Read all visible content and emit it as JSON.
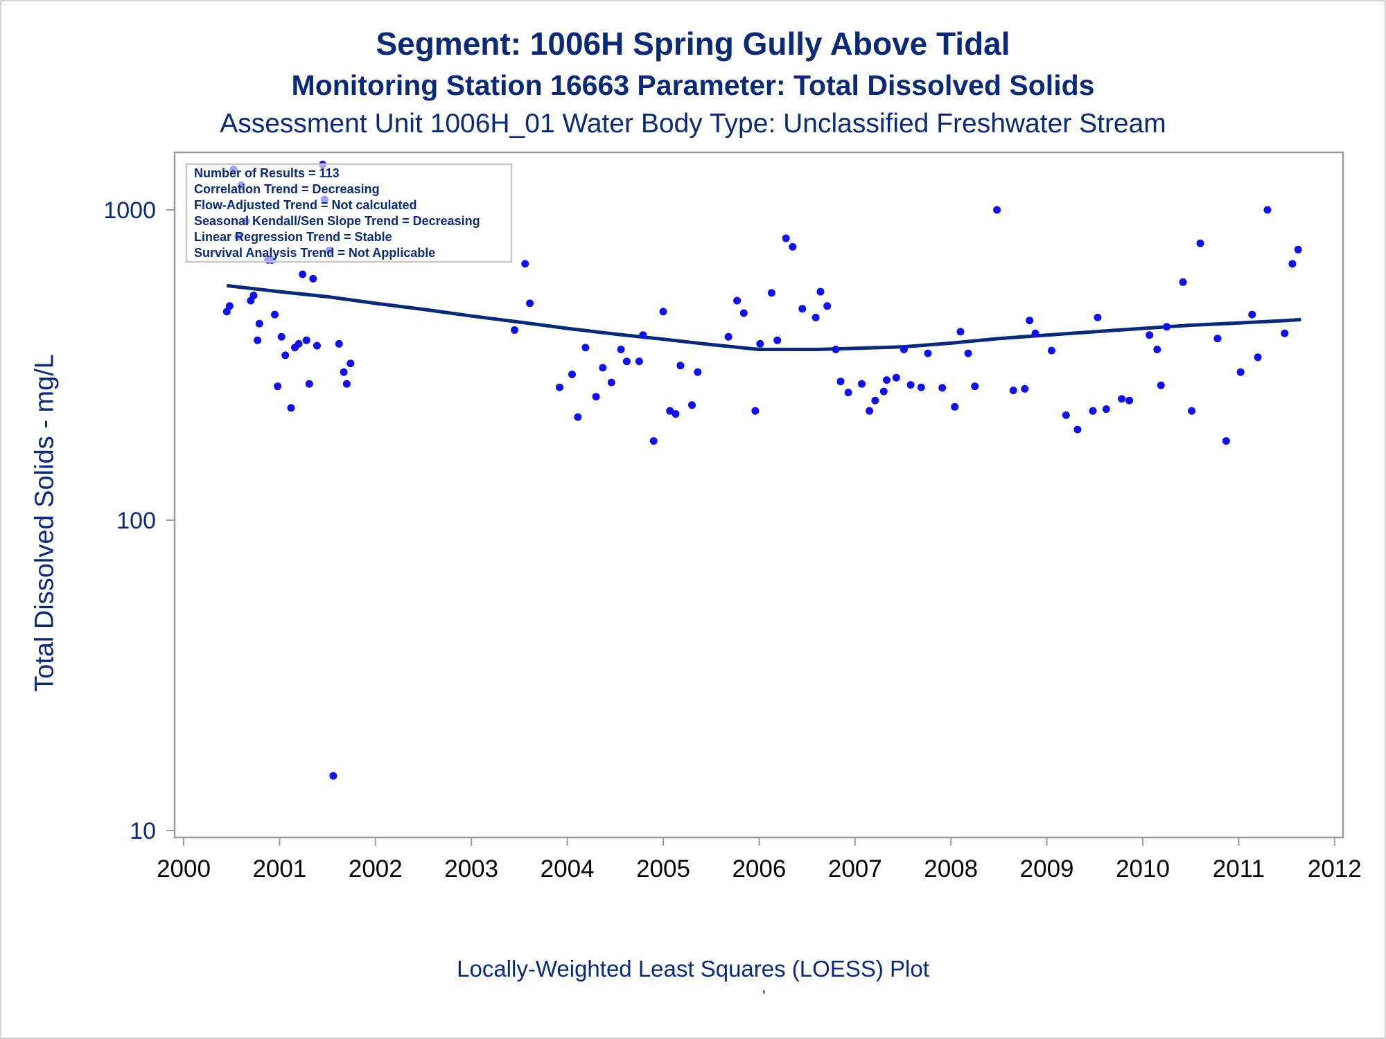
{
  "chart_data": {
    "type": "scatter",
    "title": "Segment: 1006H  Spring Gully Above Tidal",
    "subtitle": "Monitoring Station 16663 Parameter: Total Dissolved Solids",
    "subtitle2": "Assessment Unit 1006H_01   Water Body Type: Unclassified Freshwater Stream",
    "xlabel": "Locally-Weighted Least Squares (LOESS) Plot",
    "ylabel": "Total Dissolved Solids - mg/L",
    "footnote": "'",
    "xlim": [
      2000,
      2012
    ],
    "ylim": [
      10,
      1500
    ],
    "y_scale": "log",
    "x_ticks": [
      "2000",
      "2001",
      "2002",
      "2003",
      "2004",
      "2005",
      "2006",
      "2007",
      "2008",
      "2009",
      "2010",
      "2011",
      "2012"
    ],
    "y_ticks": [
      "10",
      "100",
      "1000"
    ],
    "grid": false,
    "stats_box": {
      "placement": "top-left",
      "lines": [
        "Number of Results = 113",
        "Correlation Trend = Decreasing",
        "Flow-Adjusted Trend = Not calculated",
        "Seasonal Kendall/Sen Slope Trend = Decreasing",
        "Linear Regression Trend = Stable",
        "Survival Analysis Trend = Not Applicable"
      ]
    },
    "series": [
      {
        "type": "scatter",
        "color": "#1010ee",
        "points": [
          [
            2000.45,
            470
          ],
          [
            2000.48,
            490
          ],
          [
            2000.52,
            1350
          ],
          [
            2000.57,
            820
          ],
          [
            2000.6,
            1200
          ],
          [
            2000.65,
            920
          ],
          [
            2000.7,
            510
          ],
          [
            2000.73,
            530
          ],
          [
            2000.77,
            380
          ],
          [
            2000.79,
            430
          ],
          [
            2000.88,
            690
          ],
          [
            2000.92,
            690
          ],
          [
            2000.95,
            460
          ],
          [
            2000.98,
            270
          ],
          [
            2001.02,
            390
          ],
          [
            2001.06,
            340
          ],
          [
            2001.12,
            230
          ],
          [
            2001.16,
            360
          ],
          [
            2001.2,
            370
          ],
          [
            2001.24,
            620
          ],
          [
            2001.28,
            380
          ],
          [
            2001.31,
            275
          ],
          [
            2001.35,
            600
          ],
          [
            2001.39,
            365
          ],
          [
            2001.45,
            1400
          ],
          [
            2001.47,
            1080
          ],
          [
            2001.52,
            740
          ],
          [
            2001.56,
            15
          ],
          [
            2001.62,
            370
          ],
          [
            2001.67,
            300
          ],
          [
            2001.7,
            275
          ],
          [
            2001.74,
            320
          ],
          [
            2003.45,
            410
          ],
          [
            2003.56,
            670
          ],
          [
            2003.61,
            500
          ],
          [
            2003.92,
            268
          ],
          [
            2004.05,
            295
          ],
          [
            2004.11,
            215
          ],
          [
            2004.19,
            360
          ],
          [
            2004.3,
            250
          ],
          [
            2004.37,
            310
          ],
          [
            2004.46,
            278
          ],
          [
            2004.56,
            355
          ],
          [
            2004.62,
            325
          ],
          [
            2004.75,
            325
          ],
          [
            2004.79,
            395
          ],
          [
            2004.9,
            180
          ],
          [
            2005.0,
            470
          ],
          [
            2005.07,
            225
          ],
          [
            2005.13,
            220
          ],
          [
            2005.18,
            315
          ],
          [
            2005.3,
            235
          ],
          [
            2005.36,
            300
          ],
          [
            2005.68,
            390
          ],
          [
            2005.77,
            510
          ],
          [
            2005.84,
            465
          ],
          [
            2005.96,
            225
          ],
          [
            2006.01,
            370
          ],
          [
            2006.13,
            540
          ],
          [
            2006.19,
            380
          ],
          [
            2006.28,
            810
          ],
          [
            2006.35,
            760
          ],
          [
            2006.45,
            480
          ],
          [
            2006.59,
            450
          ],
          [
            2006.64,
            545
          ],
          [
            2006.71,
            490
          ],
          [
            2006.8,
            355
          ],
          [
            2006.85,
            280
          ],
          [
            2006.93,
            258
          ],
          [
            2007.07,
            275
          ],
          [
            2007.15,
            225
          ],
          [
            2007.21,
            243
          ],
          [
            2007.3,
            260
          ],
          [
            2007.33,
            283
          ],
          [
            2007.43,
            288
          ],
          [
            2007.51,
            355
          ],
          [
            2007.58,
            273
          ],
          [
            2007.69,
            268
          ],
          [
            2007.76,
            345
          ],
          [
            2007.91,
            267
          ],
          [
            2008.04,
            232
          ],
          [
            2008.1,
            405
          ],
          [
            2008.18,
            345
          ],
          [
            2008.25,
            270
          ],
          [
            2008.48,
            1000
          ],
          [
            2008.65,
            262
          ],
          [
            2008.77,
            265
          ],
          [
            2008.82,
            440
          ],
          [
            2008.88,
            400
          ],
          [
            2009.05,
            352
          ],
          [
            2009.2,
            218
          ],
          [
            2009.32,
            196
          ],
          [
            2009.48,
            225
          ],
          [
            2009.53,
            450
          ],
          [
            2009.62,
            228
          ],
          [
            2009.78,
            246
          ],
          [
            2009.86,
            243
          ],
          [
            2010.07,
            395
          ],
          [
            2010.15,
            355
          ],
          [
            2010.19,
            272
          ],
          [
            2010.25,
            420
          ],
          [
            2010.42,
            585
          ],
          [
            2010.51,
            225
          ],
          [
            2010.6,
            780
          ],
          [
            2010.78,
            385
          ],
          [
            2010.87,
            180
          ],
          [
            2011.02,
            300
          ],
          [
            2011.14,
            460
          ],
          [
            2011.2,
            335
          ],
          [
            2011.3,
            1000
          ],
          [
            2011.48,
            400
          ],
          [
            2011.56,
            670
          ],
          [
            2011.62,
            745
          ]
        ]
      },
      {
        "type": "line",
        "color": "#0a2a78",
        "points": [
          [
            2000.45,
            570
          ],
          [
            2001.0,
            545
          ],
          [
            2001.5,
            525
          ],
          [
            2002.0,
            500
          ],
          [
            2002.5,
            478
          ],
          [
            2003.0,
            455
          ],
          [
            2003.5,
            435
          ],
          [
            2004.0,
            415
          ],
          [
            2004.5,
            398
          ],
          [
            2005.0,
            383
          ],
          [
            2005.5,
            368
          ],
          [
            2006.0,
            355
          ],
          [
            2006.3,
            355
          ],
          [
            2006.6,
            355
          ],
          [
            2007.0,
            358
          ],
          [
            2007.5,
            362
          ],
          [
            2008.0,
            372
          ],
          [
            2008.5,
            385
          ],
          [
            2009.0,
            395
          ],
          [
            2009.5,
            405
          ],
          [
            2010.0,
            415
          ],
          [
            2010.5,
            425
          ],
          [
            2011.0,
            432
          ],
          [
            2011.5,
            440
          ],
          [
            2011.65,
            443
          ]
        ]
      }
    ]
  }
}
